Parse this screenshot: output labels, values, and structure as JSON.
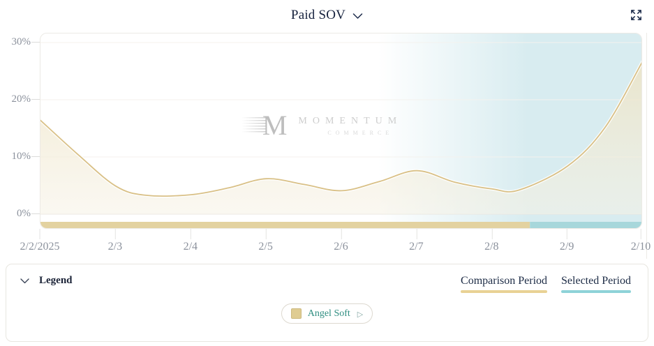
{
  "header": {
    "title": "Paid SOV"
  },
  "chart": {
    "y_tick_labels": [
      "30%",
      "20%",
      "10%",
      "0%"
    ],
    "watermark": {
      "monogram": "M",
      "name": "MOMENTUM",
      "sub": "COMMERCE"
    }
  },
  "chart_data": {
    "type": "area",
    "title": "Paid SOV",
    "unit": "%",
    "x_labels": [
      "2/2/2025",
      "2/3",
      "2/4",
      "2/5",
      "2/6",
      "2/7",
      "2/8",
      "2/9",
      "2/10"
    ],
    "series": [
      {
        "name": "Angel Soft",
        "values_pct": [
          16.4,
          4.9,
          3.4,
          6.2,
          4.1,
          7.6,
          4.4,
          8.4,
          26.8
        ]
      }
    ],
    "curve_points": [
      [
        0,
        16.4
      ],
      [
        0.5,
        10.4
      ],
      [
        1,
        4.9
      ],
      [
        1.4,
        3.3
      ],
      [
        2,
        3.4
      ],
      [
        2.5,
        4.6
      ],
      [
        3,
        6.2
      ],
      [
        3.5,
        5.2
      ],
      [
        4,
        4.1
      ],
      [
        4.5,
        5.7
      ],
      [
        5,
        7.6
      ],
      [
        5.5,
        5.6
      ],
      [
        6,
        4.4
      ],
      [
        6.35,
        4.2
      ],
      [
        7,
        8.4
      ],
      [
        7.5,
        15.2
      ],
      [
        8,
        26.8
      ]
    ],
    "ylim": [
      0,
      30
    ],
    "y_ticks_pct": [
      0,
      10,
      20,
      30
    ],
    "grid": "horizontal-faint",
    "legend_position": "bottom",
    "selected_period_start_day": 6.5,
    "colors": {
      "line": "#d9c086",
      "area_fill": "#f1e8cd",
      "comparison_bar": "#e3d2a0",
      "selected_bar": "#a7d7db",
      "selected_region": "#d8ecf0"
    }
  },
  "legend_panel": {
    "title": "Legend",
    "comparison_label": "Comparison Period",
    "selected_label": "Selected Period",
    "items": [
      {
        "label": "Angel Soft",
        "swatch_color": "#dfcc92",
        "label_color": "#2e8d80"
      }
    ]
  }
}
